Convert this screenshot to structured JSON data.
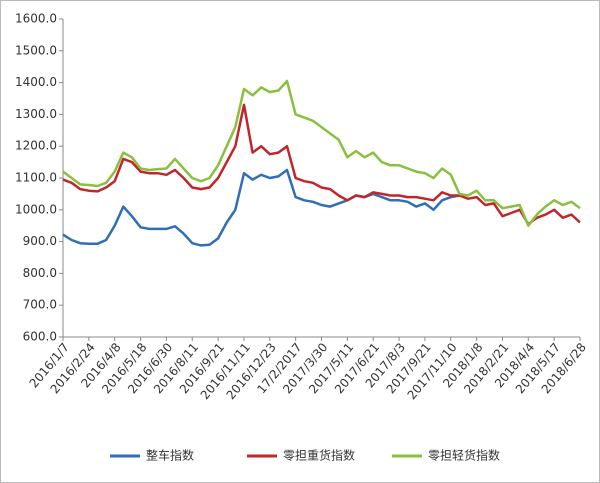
{
  "chart_data": {
    "type": "line",
    "categories": [
      "2016/1/7",
      null,
      null,
      "2016/2/24",
      null,
      null,
      "2016/4/8",
      null,
      null,
      "2016/5/18",
      null,
      null,
      "2016/6/30",
      null,
      null,
      "2016/8/11",
      null,
      null,
      "2016/9/21",
      null,
      null,
      "2016/11/11",
      null,
      null,
      "2016/12/23",
      null,
      null,
      "17/2/2017",
      null,
      null,
      "2017/3/30",
      null,
      null,
      "2017/5/11",
      null,
      null,
      "2017/6/21",
      null,
      null,
      "2017/8/3",
      null,
      null,
      "2017/9/21",
      null,
      null,
      "2017/11/10",
      null,
      null,
      "2018/1/8",
      null,
      null,
      "2018/2/21",
      null,
      null,
      "2018/4/4",
      null,
      null,
      "2018/5/17",
      null,
      null,
      "2018/6/28"
    ],
    "series": [
      {
        "name": "整车指数",
        "color": "#2e6fb7",
        "values": [
          922,
          905,
          895,
          893,
          893,
          905,
          950,
          1010,
          980,
          945,
          940,
          940,
          940,
          948,
          925,
          895,
          888,
          890,
          910,
          960,
          1000,
          1115,
          1095,
          1110,
          1100,
          1105,
          1125,
          1040,
          1030,
          1025,
          1015,
          1010,
          1020,
          1030,
          1045,
          1040,
          1050,
          1040,
          1030,
          1030,
          1025,
          1010,
          1020,
          1000,
          1030,
          1040,
          1045,
          null,
          null,
          null,
          null,
          null,
          null,
          null,
          null,
          null,
          null,
          null,
          null,
          null,
          null
        ]
      },
      {
        "name": "零担重货指数",
        "color": "#c0272d",
        "values": [
          1095,
          1085,
          1065,
          1060,
          1058,
          1070,
          1090,
          1160,
          1150,
          1120,
          1115,
          1115,
          1110,
          1125,
          1100,
          1070,
          1065,
          1070,
          1100,
          1150,
          1200,
          1330,
          1180,
          1200,
          1175,
          1180,
          1200,
          1100,
          1090,
          1085,
          1070,
          1065,
          1045,
          1030,
          1045,
          1040,
          1055,
          1050,
          1045,
          1045,
          1040,
          1040,
          1035,
          1030,
          1055,
          1045,
          1045,
          1035,
          1040,
          1015,
          1020,
          980,
          990,
          1000,
          955,
          975,
          985,
          1000,
          975,
          985,
          960
        ]
      },
      {
        "name": "零担轻货指数",
        "color": "#8bbf3f",
        "values": [
          1120,
          1100,
          1080,
          1078,
          1075,
          1085,
          1120,
          1180,
          1165,
          1130,
          1125,
          1128,
          1130,
          1160,
          1130,
          1100,
          1090,
          1100,
          1140,
          1200,
          1260,
          1380,
          1360,
          1385,
          1370,
          1375,
          1405,
          1300,
          1290,
          1280,
          1260,
          1240,
          1220,
          1165,
          1185,
          1165,
          1180,
          1150,
          1140,
          1140,
          1130,
          1120,
          1115,
          1100,
          1130,
          1110,
          1050,
          1045,
          1060,
          1030,
          1030,
          1005,
          1010,
          1015,
          950,
          985,
          1010,
          1030,
          1015,
          1025,
          1005
        ]
      }
    ],
    "ylim": [
      600,
      1600
    ],
    "yticks": [
      {
        "value": 600,
        "label": "600.0"
      },
      {
        "value": 700,
        "label": "700.0"
      },
      {
        "value": 800,
        "label": "800.0"
      },
      {
        "value": 900,
        "label": "900.0"
      },
      {
        "value": 1000,
        "label": "1000.0"
      },
      {
        "value": 1100,
        "label": "1100.0"
      },
      {
        "value": 1200,
        "label": "1200.0"
      },
      {
        "value": 1300,
        "label": "1300.0"
      },
      {
        "value": 1400,
        "label": "1400.0"
      },
      {
        "value": 1500,
        "label": "1500.0"
      },
      {
        "value": 1600,
        "label": "1600.0"
      }
    ],
    "grid": false,
    "legend": "bottom"
  }
}
